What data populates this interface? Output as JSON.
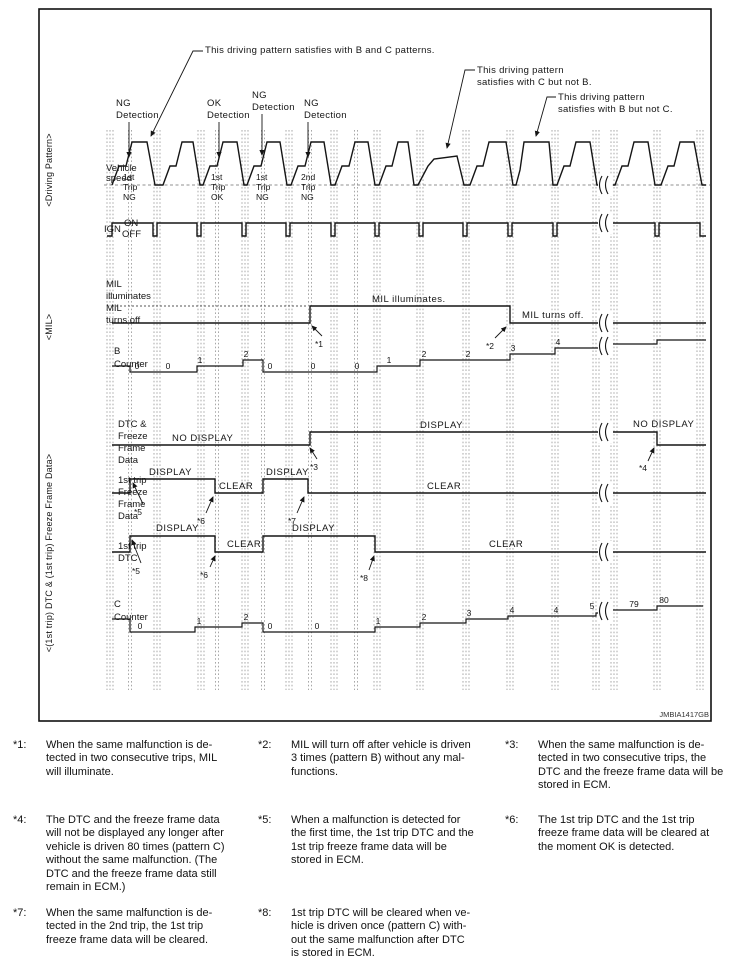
{
  "diagram": {
    "annotations": {
      "bc": "This driving pattern satisfies with B and C patterns.",
      "c_not_b_1": "This driving pattern",
      "c_not_b_2": "satisfies with C but not B.",
      "b_not_c_1": "This driving pattern",
      "b_not_c_2": "satisfies with B but not C."
    },
    "detections": [
      {
        "l1": "NG",
        "l2": "Detection"
      },
      {
        "l1": "OK",
        "l2": "Detection"
      },
      {
        "l1": "NG",
        "l2": "Detection"
      },
      {
        "l1": "NG",
        "l2": "Detection"
      }
    ],
    "trips": [
      {
        "l1": "1st",
        "l2": "Trip",
        "l3": "NG"
      },
      {
        "l1": "1st",
        "l2": "Trip",
        "l3": "OK"
      },
      {
        "l1": "1st",
        "l2": "Trip",
        "l3": "NG"
      },
      {
        "l1": "2nd",
        "l2": "Trip",
        "l3": "NG"
      }
    ],
    "rows": {
      "speed_l1": "Vehicle",
      "speed_l2": "speed",
      "ign": "IGN",
      "on": "ON",
      "off": "OFF",
      "mil_l1": "MIL",
      "mil_l2": "illuminates",
      "mil_l3": "MIL",
      "mil_l4": "turns off",
      "b_l1": "B",
      "b_l2": "Counter",
      "dtc_ff": [
        "DTC &",
        "Freeze",
        "Frame",
        "Data"
      ],
      "ff1": [
        "1st trip",
        "Freeze",
        "Frame",
        "Data"
      ],
      "dtc1": [
        "1st trip",
        "DTC"
      ],
      "c_l1": "C",
      "c_l2": "Counter"
    },
    "states": {
      "mil_on_text": "MIL illuminates.",
      "mil_off_text": "MIL turns off.",
      "no_display_1": "NO DISPLAY",
      "display_dtcff": "DISPLAY",
      "no_display_2": "NO DISPLAY",
      "ff_display_1": "DISPLAY",
      "ff_clear_1": "CLEAR",
      "ff_display_2": "DISPLAY",
      "ff_clear_2": "CLEAR",
      "dtc_display_1": "DISPLAY",
      "dtc_clear_1": "CLEAR",
      "dtc_display_2": "DISPLAY",
      "dtc_clear_2": "CLEAR"
    },
    "refs": {
      "r1": "*1",
      "r2": "*2",
      "r3": "*3",
      "r4": "*4",
      "r5a": "*5",
      "r6a": "*6",
      "r7": "*7",
      "r5b": "*5",
      "r6b": "*6",
      "r8": "*8"
    },
    "b_counter_values": [
      "0",
      "0",
      "1",
      "2",
      "0",
      "0",
      "0",
      "1",
      "2",
      "2",
      "3",
      "4"
    ],
    "c_counter_values": [
      "0",
      "1",
      "2",
      "0",
      "0",
      "1",
      "2",
      "3",
      "4",
      "4",
      "5",
      "79",
      "80"
    ],
    "groups": {
      "driving": "<Driving Pattern>",
      "mil": "<MIL>",
      "dtc": "<(1st trip) DTC & (1st trip) Freeze Frame Data>"
    },
    "watermark": "JMBIA1417GB"
  },
  "footnotes": [
    {
      "id": "*1:",
      "text": "When the same malfunction is de-\ntected in two consecutive trips, MIL\nwill illuminate."
    },
    {
      "id": "*2:",
      "text": "MIL will turn off after vehicle is driven\n3 times (pattern B) without any mal-\nfunctions."
    },
    {
      "id": "*3:",
      "text": "When the same malfunction is de-\ntected in two consecutive trips, the\nDTC and the freeze frame data will be\nstored in ECM."
    },
    {
      "id": "*4:",
      "text": "The DTC and the freeze frame data\nwill not be displayed any longer after\nvehicle is driven 80 times (pattern C)\nwithout the same malfunction. (The\nDTC and the freeze frame data still\nremain in ECM.)"
    },
    {
      "id": "*5:",
      "text": "When a malfunction is detected for\nthe first time, the 1st trip DTC and the\n1st trip freeze frame data will be\nstored in ECM."
    },
    {
      "id": "*6:",
      "text": "The 1st trip DTC and the 1st trip\nfreeze frame data will be cleared at\nthe moment OK is detected."
    },
    {
      "id": "*7:",
      "text": "When the same malfunction is de-\ntected in the 2nd trip, the 1st trip\nfreeze frame data will be cleared."
    },
    {
      "id": "*8:",
      "text": "1st trip DTC will be cleared when ve-\nhicle is driven once (pattern C) with-\nout the same malfunction after DTC\nis stored in ECM."
    }
  ]
}
